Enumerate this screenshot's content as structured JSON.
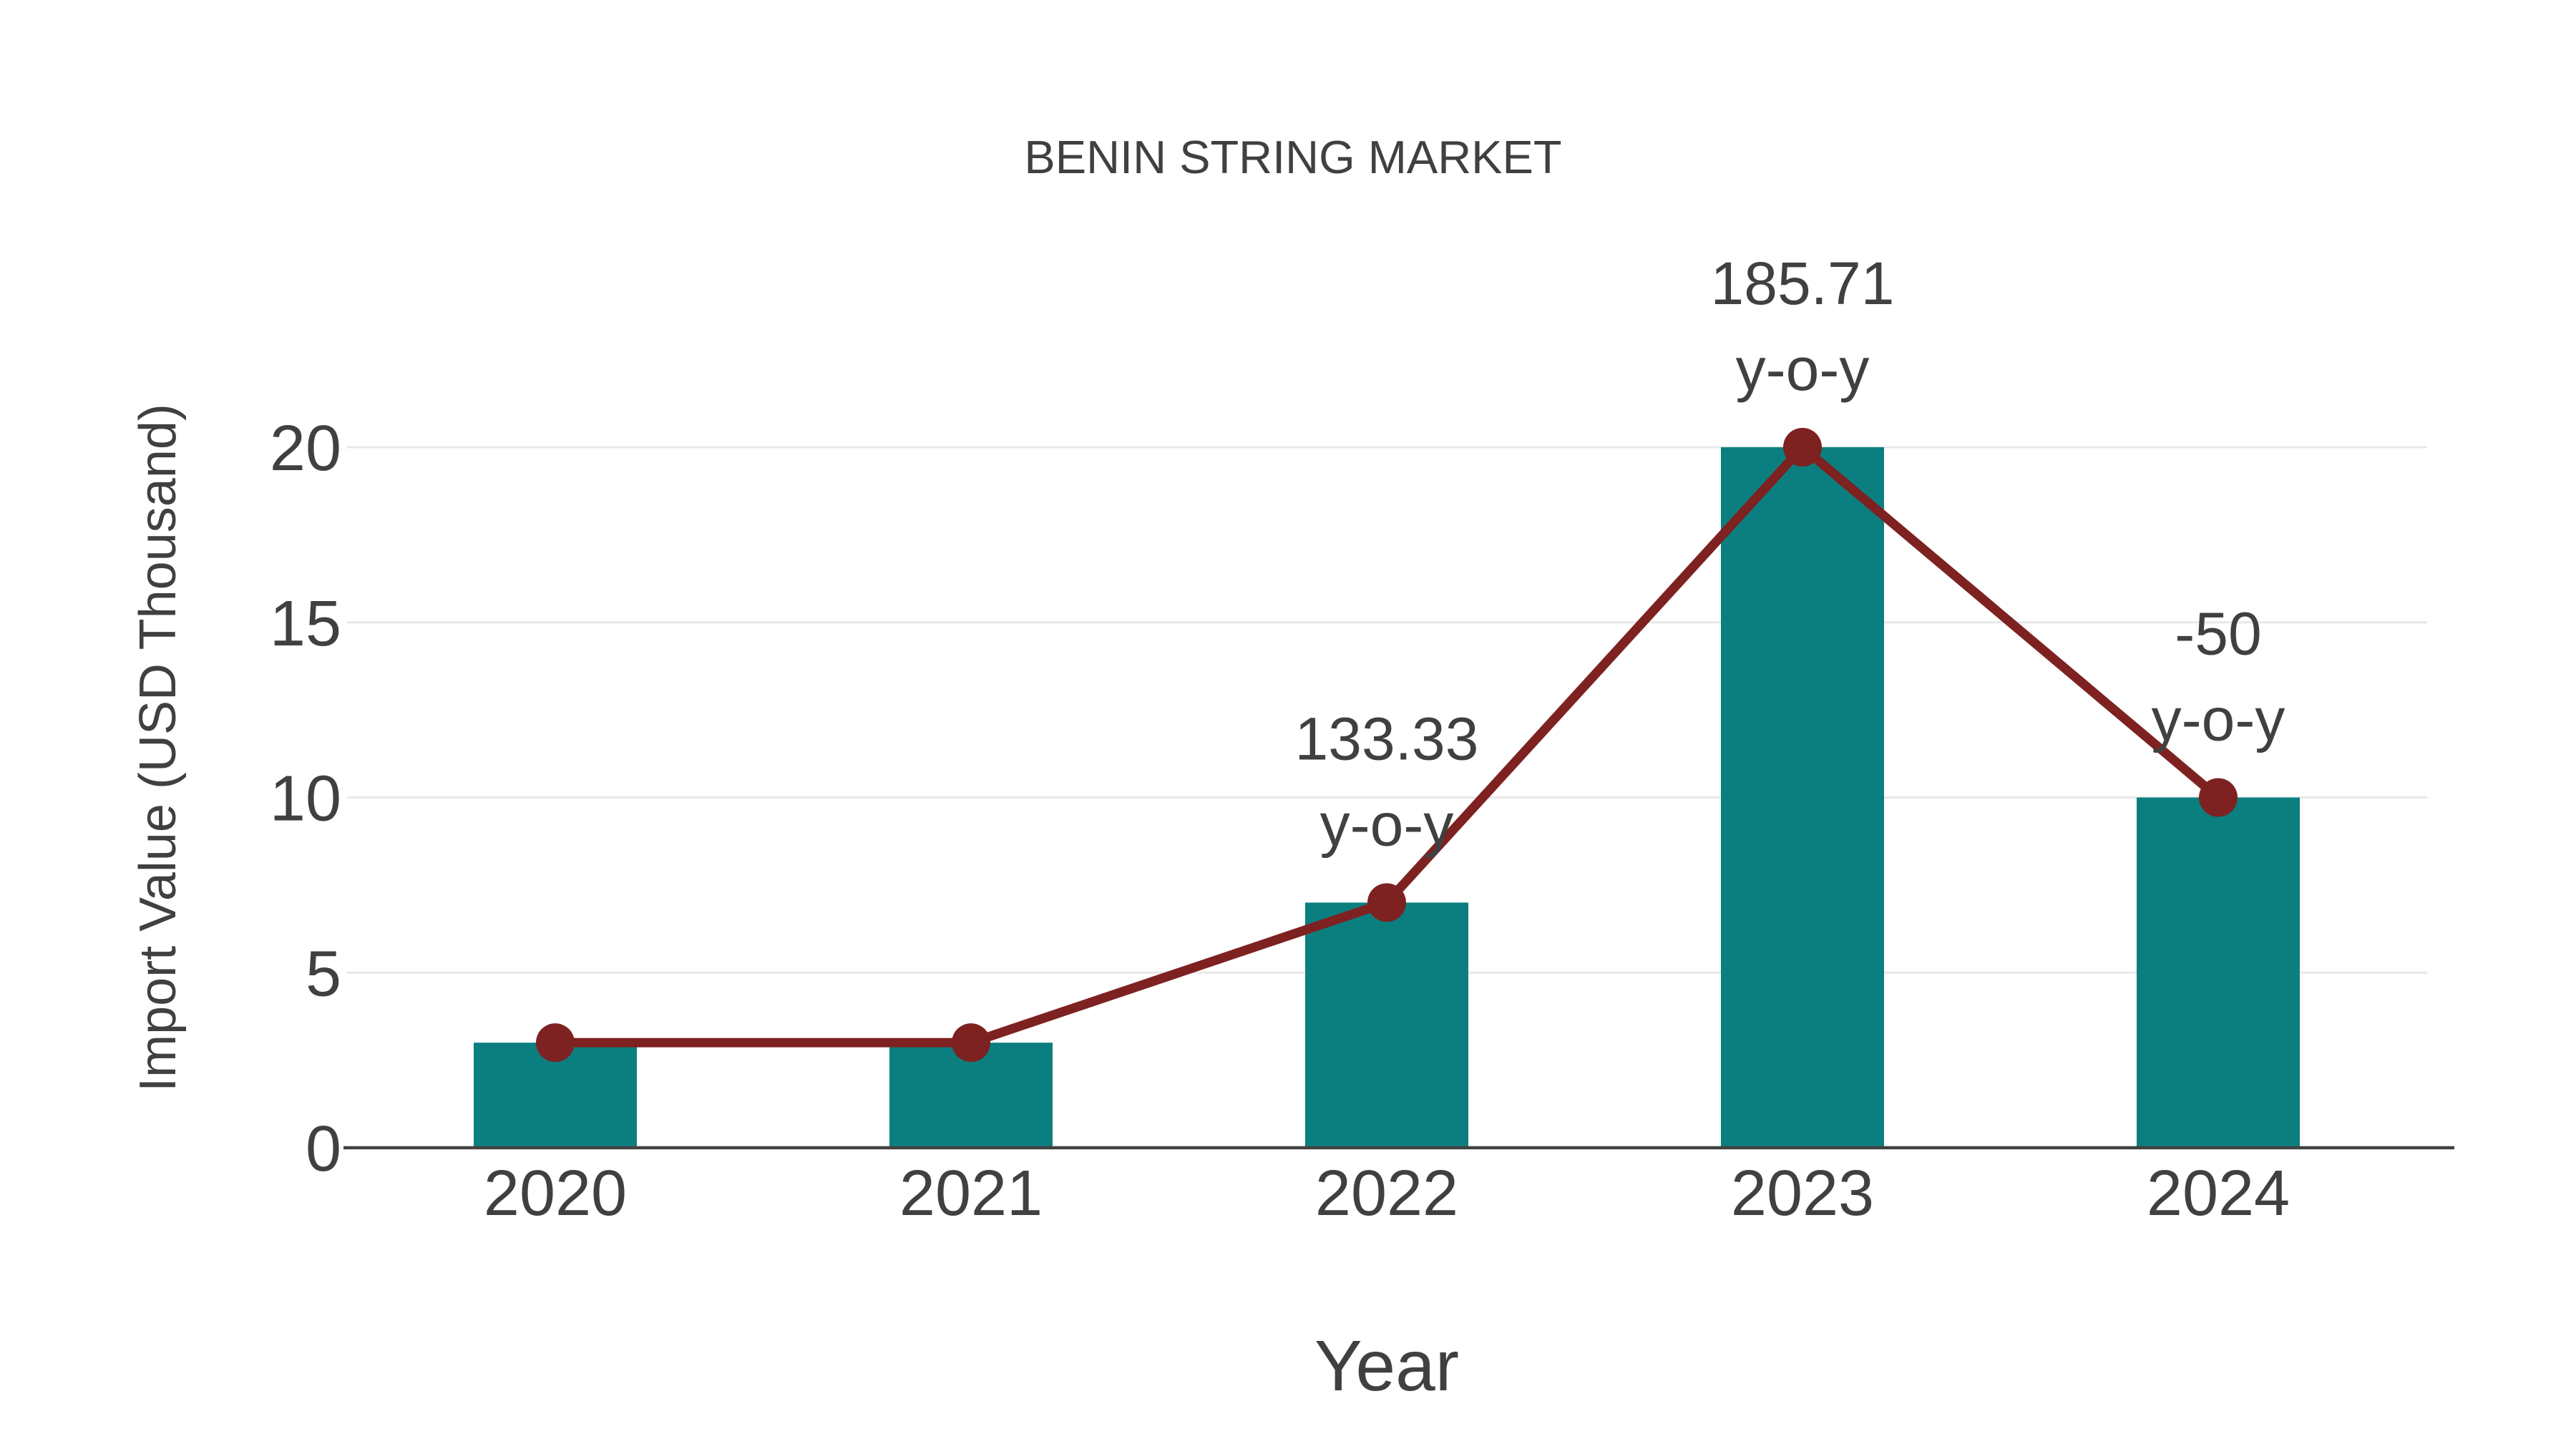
{
  "chart_data": {
    "type": "bar",
    "title": "BENIN STRING MARKET",
    "xlabel": "Year",
    "ylabel": "Import Value (USD Thousand)",
    "categories": [
      "2020",
      "2021",
      "2022",
      "2023",
      "2024"
    ],
    "series": [
      {
        "name": "import-value-bars",
        "type": "bar",
        "values": [
          3,
          3,
          7,
          20,
          10
        ]
      },
      {
        "name": "import-value-line",
        "type": "line",
        "values": [
          3,
          3,
          7,
          20,
          10
        ]
      }
    ],
    "annotations": [
      {
        "category": "2022",
        "text": "133.33",
        "subtext": "y-o-y"
      },
      {
        "category": "2023",
        "text": "185.71",
        "subtext": "y-o-y"
      },
      {
        "category": "2024",
        "text": "-50",
        "subtext": "y-o-y"
      }
    ],
    "yticks": [
      0,
      5,
      10,
      15,
      20
    ],
    "ylim": [
      0,
      20
    ],
    "grid": true,
    "legend": false
  },
  "colors": {
    "bar": "#0B7F80",
    "line": "#7E2121",
    "marker": "#7E2121",
    "text": "#404040",
    "grid": "#E8E8E8",
    "axis": "#424242",
    "background": "#FFFFFF"
  }
}
